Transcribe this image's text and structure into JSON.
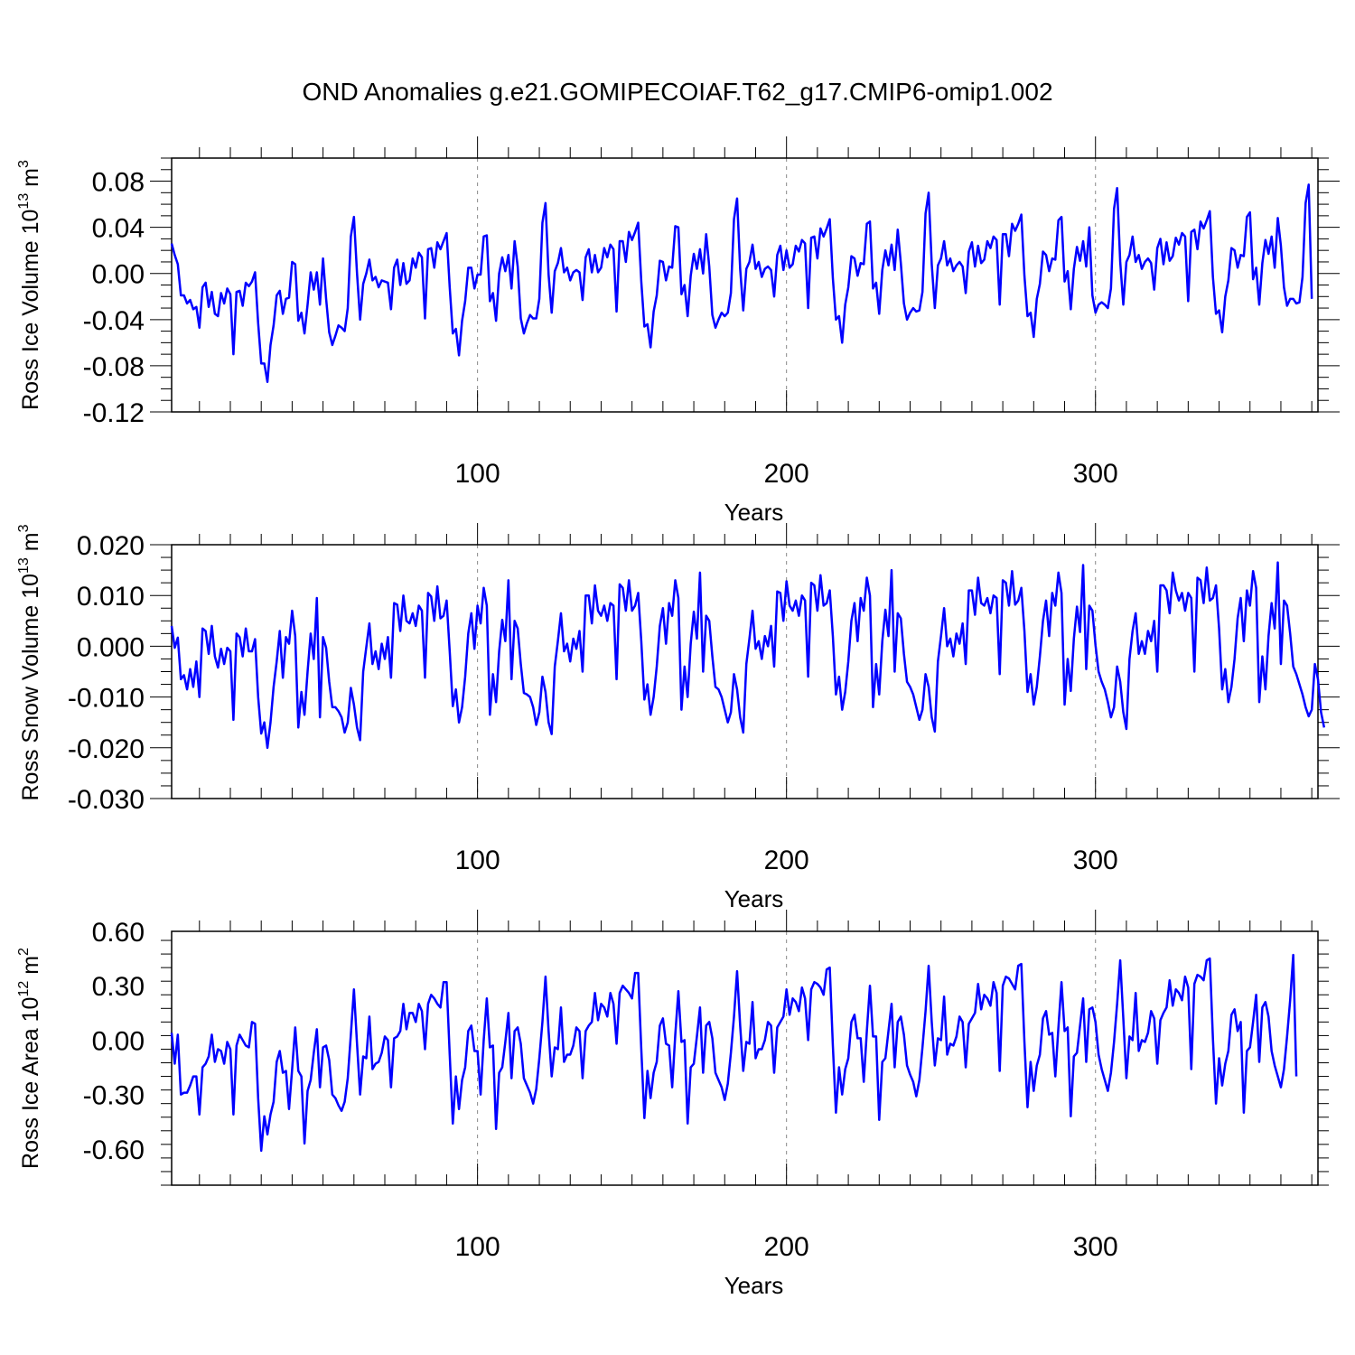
{
  "title": "OND Anomalies g.e21.GOMIPECOIAF.T62_g17.CMIP6-omip1.002",
  "line_color": "#0000ff",
  "chart_data": [
    {
      "type": "line",
      "ylabel": "Ross Ice Volume 10",
      "ylabel_sup": "13",
      "ylabel_unit": " m",
      "ylabel_unit_sup": "3",
      "xlabel": "Years",
      "xlim": [
        1,
        372
      ],
      "ylim": [
        -0.12,
        0.1
      ],
      "x_ticks": [
        100,
        200,
        300
      ],
      "x_tick_labels": [
        "100",
        "200",
        "300"
      ],
      "y_ticks": [
        -0.12,
        -0.08,
        -0.04,
        0.0,
        0.04,
        0.08
      ],
      "y_tick_labels": [
        "-0.12",
        "-0.08",
        "-0.04",
        "0.00",
        "0.04",
        "0.08"
      ],
      "grid": "vertical-dashed-at-major-x",
      "x_start": 1,
      "values": [
        0.026,
        0.016,
        0.008,
        -0.019,
        -0.019,
        -0.026,
        -0.023,
        -0.031,
        -0.029,
        -0.047,
        -0.012,
        -0.008,
        -0.029,
        -0.016,
        -0.035,
        -0.037,
        -0.017,
        -0.026,
        -0.013,
        -0.018,
        -0.07,
        -0.016,
        -0.015,
        -0.028,
        -0.008,
        -0.011,
        -0.007,
        0.001,
        -0.043,
        -0.078,
        -0.078,
        -0.094,
        -0.062,
        -0.045,
        -0.019,
        -0.015,
        -0.035,
        -0.022,
        -0.021,
        0.01,
        0.008,
        -0.041,
        -0.034,
        -0.052,
        -0.027,
        0.001,
        -0.014,
        0.001,
        -0.027,
        0.013,
        -0.022,
        -0.051,
        -0.062,
        -0.054,
        -0.045,
        -0.047,
        -0.05,
        -0.03,
        0.032,
        0.049,
        0.0,
        -0.04,
        -0.009,
        0.0,
        0.012,
        -0.006,
        -0.003,
        -0.012,
        -0.006,
        -0.007,
        -0.008,
        -0.031,
        0.005,
        0.012,
        -0.01,
        0.009,
        -0.009,
        -0.006,
        0.013,
        0.005,
        0.018,
        0.014,
        -0.039,
        0.021,
        0.022,
        0.005,
        0.027,
        0.021,
        0.028,
        0.035,
        -0.012,
        -0.052,
        -0.048,
        -0.071,
        -0.041,
        -0.024,
        0.005,
        0.005,
        -0.013,
        -0.001,
        -0.001,
        0.032,
        0.033,
        -0.024,
        -0.017,
        -0.041,
        0.0,
        0.014,
        0.002,
        0.016,
        -0.013,
        0.028,
        0.006,
        -0.039,
        -0.052,
        -0.043,
        -0.036,
        -0.039,
        -0.039,
        -0.022,
        0.044,
        0.061,
        -0.001,
        -0.034,
        0.002,
        0.009,
        0.022,
        0.001,
        0.005,
        -0.006,
        0.001,
        0.003,
        0.001,
        -0.023,
        0.014,
        0.021,
        0.001,
        0.016,
        0.001,
        0.005,
        0.022,
        0.014,
        0.025,
        0.021,
        -0.033,
        0.028,
        0.028,
        0.01,
        0.036,
        0.029,
        0.036,
        0.044,
        -0.007,
        -0.046,
        -0.044,
        -0.064,
        -0.033,
        -0.019,
        0.011,
        0.01,
        -0.006,
        0.006,
        0.005,
        0.041,
        0.04,
        -0.018,
        -0.01,
        -0.037,
        -0.002,
        0.017,
        0.004,
        0.021,
        0.0,
        0.034,
        0.006,
        -0.036,
        -0.047,
        -0.04,
        -0.034,
        -0.037,
        -0.034,
        -0.017,
        0.047,
        0.065,
        0.004,
        -0.032,
        0.004,
        0.01,
        0.025,
        0.004,
        0.01,
        -0.003,
        0.004,
        0.006,
        0.003,
        -0.02,
        0.016,
        0.024,
        0.003,
        0.02,
        0.005,
        0.008,
        0.024,
        0.019,
        0.029,
        0.026,
        -0.03,
        0.031,
        0.032,
        0.013,
        0.039,
        0.032,
        0.039,
        0.047,
        -0.004,
        -0.04,
        -0.037,
        -0.06,
        -0.027,
        -0.012,
        0.015,
        0.013,
        -0.002,
        0.009,
        0.008,
        0.043,
        0.045,
        -0.013,
        -0.008,
        -0.035,
        0.003,
        0.02,
        0.007,
        0.025,
        0.003,
        0.038,
        0.009,
        -0.026,
        -0.04,
        -0.034,
        -0.03,
        -0.033,
        -0.032,
        -0.016,
        0.052,
        0.07,
        0.008,
        -0.03,
        0.007,
        0.013,
        0.028,
        0.007,
        0.013,
        0.002,
        0.007,
        0.01,
        0.006,
        -0.017,
        0.019,
        0.027,
        0.006,
        0.024,
        0.009,
        0.012,
        0.028,
        0.022,
        0.032,
        0.029,
        -0.027,
        0.034,
        0.034,
        0.015,
        0.043,
        0.037,
        0.043,
        0.051,
        -0.002,
        -0.037,
        -0.034,
        -0.055,
        -0.022,
        -0.009,
        0.019,
        0.016,
        0.002,
        0.013,
        0.012,
        0.046,
        0.049,
        -0.007,
        0.002,
        -0.031,
        0.004,
        0.023,
        0.011,
        0.028,
        0.006,
        0.04,
        -0.019,
        -0.034,
        -0.027,
        -0.025,
        -0.027,
        -0.03,
        -0.013,
        0.056,
        0.074,
        0.01,
        -0.027,
        0.01,
        0.016,
        0.032,
        0.01,
        0.016,
        0.004,
        0.01,
        0.013,
        0.009,
        -0.014,
        0.022,
        0.03,
        0.008,
        0.027,
        0.011,
        0.015,
        0.031,
        0.025,
        0.035,
        0.032,
        -0.024,
        0.036,
        0.038,
        0.021,
        0.045,
        0.039,
        0.046,
        0.054,
        -0.003,
        -0.035,
        -0.032,
        -0.051,
        -0.02,
        -0.006,
        0.022,
        0.02,
        0.005,
        0.016,
        0.015,
        0.049,
        0.053,
        -0.005,
        0.005,
        -0.027,
        0.009,
        0.029,
        0.017,
        0.032,
        0.005,
        0.048,
        0.024,
        -0.012,
        -0.028,
        -0.022,
        -0.022,
        -0.026,
        -0.025,
        -0.003,
        0.061,
        0.077,
        -0.022
      ]
    },
    {
      "type": "line",
      "ylabel": "Ross Snow Volume 10",
      "ylabel_sup": "13",
      "ylabel_unit": " m",
      "ylabel_unit_sup": "3",
      "xlabel": "Years",
      "xlim": [
        1,
        372
      ],
      "ylim": [
        -0.03,
        0.02
      ],
      "x_ticks": [
        100,
        200,
        300
      ],
      "x_tick_labels": [
        "100",
        "200",
        "300"
      ],
      "y_ticks": [
        -0.03,
        -0.02,
        -0.01,
        0.0,
        0.01,
        0.02
      ],
      "y_tick_labels": [
        "-0.030",
        "-0.020",
        "-0.010",
        "0.000",
        "0.010",
        "0.020"
      ],
      "grid": "vertical-dashed-at-major-x",
      "x_start": 1,
      "values": [
        0.004,
        -0.0003,
        0.0017,
        -0.0065,
        -0.0057,
        -0.0085,
        -0.0045,
        -0.008,
        -0.003,
        -0.01,
        0.0035,
        0.003,
        -0.0015,
        0.004,
        -0.002,
        -0.0042,
        -0.0005,
        -0.0035,
        -0.0003,
        -0.001,
        -0.0145,
        0.0025,
        0.0018,
        -0.002,
        0.0035,
        -0.001,
        -0.001,
        0.0014,
        -0.01,
        -0.0172,
        -0.015,
        -0.02,
        -0.015,
        -0.008,
        -0.003,
        0.003,
        -0.0062,
        0.0018,
        0.0005,
        0.007,
        0.002,
        -0.016,
        -0.009,
        -0.0135,
        -0.005,
        0.0025,
        -0.0025,
        0.0095,
        -0.014,
        0.0018,
        -0.0003,
        -0.007,
        -0.012,
        -0.012,
        -0.0128,
        -0.014,
        -0.017,
        -0.015,
        -0.0082,
        -0.0115,
        -0.016,
        -0.0185,
        -0.005,
        -0.0002,
        0.0045,
        -0.0035,
        -0.001,
        -0.0045,
        0.0005,
        -0.0025,
        0.0018,
        -0.0062,
        0.0085,
        0.0082,
        0.003,
        0.01,
        0.005,
        0.0045,
        0.0065,
        0.004,
        0.008,
        0.007,
        -0.0062,
        0.0105,
        0.0098,
        0.005,
        0.0118,
        0.0055,
        0.006,
        0.009,
        -0.001,
        -0.0118,
        -0.0085,
        -0.015,
        -0.012,
        -0.006,
        0.0025,
        0.0065,
        -0.0005,
        0.008,
        0.0045,
        0.0115,
        0.008,
        -0.0135,
        -0.0055,
        -0.011,
        -0.001,
        0.0052,
        0.001,
        0.013,
        -0.0065,
        0.005,
        0.0035,
        -0.0035,
        -0.0092,
        -0.0095,
        -0.01,
        -0.012,
        -0.0155,
        -0.013,
        -0.006,
        -0.009,
        -0.015,
        -0.0173,
        -0.004,
        0.001,
        0.0065,
        -0.001,
        0.0005,
        -0.003,
        0.0015,
        -0.0005,
        0.003,
        -0.005,
        0.01,
        0.01,
        0.0045,
        0.012,
        0.007,
        0.006,
        0.008,
        0.005,
        0.0085,
        0.008,
        -0.0065,
        0.0122,
        0.0115,
        0.007,
        0.013,
        0.007,
        0.008,
        0.0105,
        0.001,
        -0.0105,
        -0.0075,
        -0.0135,
        -0.01,
        -0.004,
        0.004,
        0.0075,
        0.0005,
        0.0085,
        0.006,
        0.013,
        0.0095,
        -0.0125,
        -0.004,
        -0.01,
        0.0005,
        0.0068,
        0.0015,
        0.0145,
        -0.005,
        0.006,
        0.005,
        -0.002,
        -0.008,
        -0.0085,
        -0.01,
        -0.0125,
        -0.015,
        -0.013,
        -0.0055,
        -0.0085,
        -0.014,
        -0.017,
        -0.0035,
        0.0015,
        0.007,
        -0.0005,
        0.001,
        -0.0025,
        0.002,
        0.0,
        0.004,
        -0.004,
        0.0108,
        0.0105,
        0.005,
        0.0128,
        0.008,
        0.007,
        0.009,
        0.006,
        0.01,
        0.009,
        -0.006,
        0.0125,
        0.012,
        0.007,
        0.014,
        0.008,
        0.0085,
        0.011,
        0.002,
        -0.0095,
        -0.006,
        -0.0125,
        -0.009,
        -0.003,
        0.005,
        0.0085,
        0.001,
        0.0095,
        0.007,
        0.0135,
        0.01,
        -0.012,
        -0.0035,
        -0.0095,
        0.001,
        0.0072,
        0.002,
        0.015,
        -0.005,
        0.0065,
        0.0055,
        -0.0015,
        -0.007,
        -0.008,
        -0.0095,
        -0.012,
        -0.0145,
        -0.0125,
        -0.0055,
        -0.008,
        -0.014,
        -0.0168,
        -0.003,
        0.002,
        0.0075,
        0.0,
        0.0015,
        -0.002,
        0.0025,
        0.0005,
        0.0045,
        -0.0035,
        0.011,
        0.011,
        0.0062,
        0.0135,
        0.0085,
        0.008,
        0.0095,
        0.0065,
        0.01,
        0.0095,
        -0.0055,
        0.013,
        0.0125,
        0.008,
        0.0148,
        0.0082,
        0.009,
        0.0115,
        0.003,
        -0.009,
        -0.0055,
        -0.0115,
        -0.008,
        -0.002,
        0.005,
        0.009,
        0.002,
        0.0105,
        0.008,
        0.0145,
        0.0105,
        -0.0115,
        -0.0025,
        -0.0088,
        0.0015,
        0.0078,
        0.0028,
        0.016,
        -0.0045,
        0.008,
        0.007,
        0.0002,
        -0.005,
        -0.007,
        -0.0085,
        -0.011,
        -0.014,
        -0.012,
        -0.004,
        -0.007,
        -0.013,
        -0.0163,
        -0.0025,
        0.003,
        0.0065,
        -0.0015,
        0.001,
        -0.0015,
        0.003,
        0.001,
        0.005,
        -0.005,
        0.012,
        0.012,
        0.011,
        0.0065,
        0.0145,
        0.011,
        0.009,
        0.0105,
        0.007,
        0.0105,
        0.0095,
        -0.005,
        0.0135,
        0.013,
        0.0085,
        0.0155,
        0.009,
        0.0095,
        0.012,
        0.0035,
        -0.0085,
        -0.0045,
        -0.011,
        -0.008,
        -0.0025,
        0.0055,
        0.0095,
        0.001,
        0.011,
        0.008,
        0.0148,
        0.0115,
        -0.011,
        -0.002,
        -0.0085,
        0.002,
        0.0085,
        0.0035,
        0.0165,
        -0.0035,
        0.009,
        0.008,
        0.0025,
        -0.004,
        -0.0055,
        -0.0075,
        -0.0095,
        -0.012,
        -0.0138,
        -0.0125,
        -0.0035,
        -0.0065,
        -0.013,
        -0.016
      ]
    },
    {
      "type": "line",
      "ylabel": "Ross Ice Area 10",
      "ylabel_sup": "12",
      "ylabel_unit": " m",
      "ylabel_unit_sup": "2",
      "xlabel": "Years",
      "xlim": [
        1,
        372
      ],
      "ylim": [
        -0.8,
        0.6
      ],
      "x_ticks": [
        100,
        200,
        300
      ],
      "x_tick_labels": [
        "100",
        "200",
        "300"
      ],
      "y_ticks": [
        -0.6,
        -0.3,
        0.0,
        0.3,
        0.6
      ],
      "y_tick_labels": [
        "-0.60",
        "-0.30",
        "0.00",
        "0.30",
        "0.60"
      ],
      "grid": "vertical-dashed-at-major-x",
      "x_start": 1,
      "values": [
        0.04,
        -0.13,
        0.03,
        -0.3,
        -0.29,
        -0.29,
        -0.25,
        -0.2,
        -0.2,
        -0.41,
        -0.15,
        -0.13,
        -0.09,
        0.03,
        -0.12,
        -0.05,
        -0.06,
        -0.13,
        -0.01,
        -0.05,
        -0.41,
        -0.03,
        0.03,
        0.0,
        -0.03,
        -0.04,
        0.1,
        0.09,
        -0.32,
        -0.61,
        -0.42,
        -0.52,
        -0.41,
        -0.34,
        -0.12,
        -0.06,
        -0.18,
        -0.17,
        -0.38,
        -0.16,
        0.07,
        -0.17,
        -0.2,
        -0.57,
        -0.28,
        -0.22,
        -0.07,
        0.06,
        -0.26,
        -0.04,
        -0.03,
        -0.11,
        -0.3,
        -0.32,
        -0.36,
        -0.39,
        -0.34,
        -0.21,
        0.03,
        0.28,
        -0.02,
        -0.3,
        -0.09,
        -0.1,
        0.13,
        -0.16,
        -0.13,
        -0.12,
        -0.07,
        0.02,
        0.0,
        -0.26,
        0.01,
        0.02,
        0.05,
        0.2,
        0.06,
        0.15,
        0.15,
        0.1,
        0.2,
        0.16,
        -0.05,
        0.2,
        0.25,
        0.23,
        0.2,
        0.18,
        0.32,
        0.32,
        -0.08,
        -0.46,
        -0.2,
        -0.38,
        -0.22,
        -0.15,
        0.05,
        0.08,
        -0.06,
        -0.06,
        -0.3,
        0.0,
        0.23,
        -0.04,
        -0.03,
        -0.49,
        -0.18,
        -0.15,
        -0.01,
        0.15,
        -0.21,
        0.05,
        0.07,
        -0.02,
        -0.21,
        -0.25,
        -0.29,
        -0.35,
        -0.27,
        -0.1,
        0.1,
        0.35,
        0.05,
        -0.2,
        -0.04,
        -0.05,
        0.18,
        -0.12,
        -0.08,
        -0.08,
        -0.03,
        0.07,
        0.05,
        -0.21,
        0.05,
        0.08,
        0.1,
        0.26,
        0.11,
        0.2,
        0.18,
        0.13,
        0.26,
        0.2,
        -0.02,
        0.26,
        0.3,
        0.28,
        0.26,
        0.23,
        0.37,
        0.37,
        -0.05,
        -0.43,
        -0.17,
        -0.32,
        -0.18,
        -0.12,
        0.08,
        0.12,
        -0.02,
        -0.03,
        -0.26,
        0.03,
        0.27,
        -0.01,
        0.0,
        -0.46,
        -0.15,
        -0.13,
        0.02,
        0.18,
        -0.18,
        0.08,
        0.1,
        0.01,
        -0.18,
        -0.22,
        -0.26,
        -0.33,
        -0.24,
        -0.07,
        0.13,
        0.38,
        0.08,
        -0.17,
        -0.01,
        -0.02,
        0.21,
        -0.1,
        -0.05,
        -0.05,
        0.0,
        0.1,
        0.08,
        -0.18,
        0.07,
        0.1,
        0.13,
        0.28,
        0.14,
        0.23,
        0.21,
        0.16,
        0.29,
        0.23,
        0.0,
        0.28,
        0.32,
        0.31,
        0.29,
        0.25,
        0.39,
        0.4,
        -0.03,
        -0.4,
        -0.15,
        -0.3,
        -0.16,
        -0.1,
        0.1,
        0.14,
        0.01,
        0.01,
        -0.23,
        0.05,
        0.3,
        0.02,
        0.02,
        -0.44,
        -0.12,
        -0.1,
        0.05,
        0.2,
        -0.15,
        0.1,
        0.13,
        0.03,
        -0.14,
        -0.19,
        -0.23,
        -0.31,
        -0.22,
        -0.04,
        0.16,
        0.41,
        0.1,
        -0.14,
        0.01,
        0.0,
        0.24,
        -0.08,
        -0.02,
        -0.03,
        0.02,
        0.13,
        0.1,
        -0.15,
        0.09,
        0.12,
        0.15,
        0.31,
        0.17,
        0.25,
        0.23,
        0.19,
        0.32,
        0.26,
        -0.17,
        0.3,
        0.35,
        0.34,
        0.31,
        0.28,
        0.41,
        0.42,
        -0.01,
        -0.37,
        -0.12,
        -0.28,
        -0.14,
        -0.08,
        0.12,
        0.16,
        0.03,
        0.04,
        -0.2,
        0.07,
        0.32,
        0.05,
        0.07,
        -0.42,
        -0.09,
        -0.07,
        0.08,
        0.23,
        -0.12,
        0.17,
        0.18,
        0.1,
        -0.08,
        -0.16,
        -0.22,
        -0.28,
        -0.18,
        -0.01,
        0.2,
        0.44,
        0.12,
        -0.21,
        0.02,
        0.0,
        0.26,
        -0.06,
        0.0,
        -0.01,
        0.04,
        0.16,
        0.12,
        -0.13,
        0.11,
        0.15,
        0.18,
        0.33,
        0.19,
        0.28,
        0.26,
        0.22,
        0.35,
        0.29,
        -0.16,
        0.31,
        0.36,
        0.35,
        0.33,
        0.44,
        0.45,
        0.01,
        -0.35,
        -0.1,
        -0.25,
        -0.13,
        -0.06,
        0.14,
        0.17,
        0.05,
        0.1,
        -0.4,
        -0.06,
        -0.04,
        0.1,
        0.25,
        -0.12,
        0.18,
        0.21,
        0.13,
        -0.06,
        -0.14,
        -0.2,
        -0.26,
        -0.16,
        0.02,
        0.22,
        0.47,
        -0.2
      ]
    }
  ]
}
